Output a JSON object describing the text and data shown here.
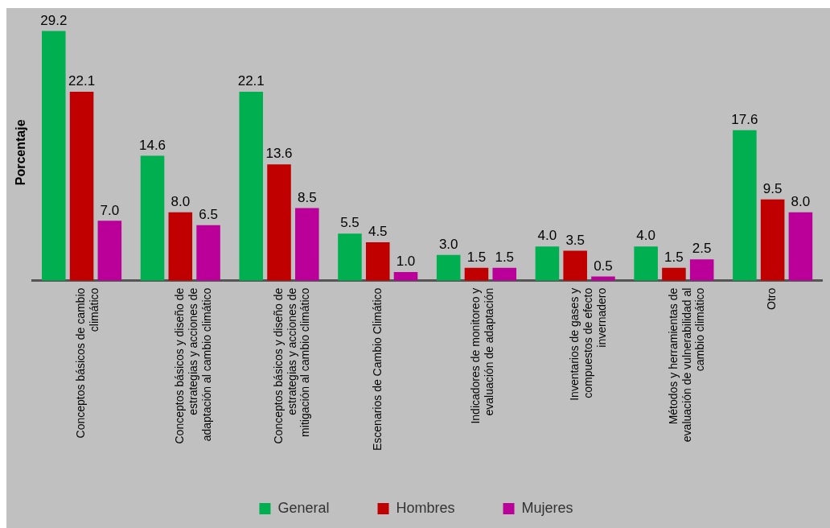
{
  "chart_data": {
    "type": "bar",
    "ylabel": "Porcentaje",
    "categories": [
      "Conceptos básicos de cambio climático",
      "Conceptos básicos y diseño de estrategias y acciones de adaptación al cambio climático",
      "Conceptos básicos y diseño de estrategias y acciones de mitigación al cambio climático",
      "Escenarios de Cambio Climático",
      "Indicadores de monitoreo y evaluación de adaptación",
      "Inventarios de gases y compuestos de efecto invernadero",
      "Métodos y herramientas de evaluación de vulnerabilidad al cambio climático",
      "Otro"
    ],
    "series": [
      {
        "name": "General",
        "color": "#00b050",
        "values": [
          29.2,
          14.6,
          22.1,
          5.5,
          3.0,
          4.0,
          4.0,
          17.6
        ],
        "value_labels": [
          "29.2",
          "14.6",
          "22.1",
          "5.5",
          "3.0",
          "4.0",
          "4.0",
          "17.6"
        ]
      },
      {
        "name": "Hombres",
        "color": "#c00000",
        "values": [
          22.1,
          8.0,
          13.6,
          4.5,
          1.5,
          3.5,
          1.5,
          9.5
        ],
        "value_labels": [
          "22.1",
          "8.0",
          "13.6",
          "4.5",
          "1.5",
          "3.5",
          "1.5",
          "9.5"
        ]
      },
      {
        "name": "Mujeres",
        "color": "#bb0099",
        "values": [
          7.0,
          6.5,
          8.5,
          1.0,
          1.5,
          0.5,
          2.5,
          8.0
        ],
        "value_labels": [
          "7.0",
          "6.5",
          "8.5",
          "1.0",
          "1.5",
          "0.5",
          "2.5",
          "8.0"
        ]
      }
    ],
    "tick_labels": "x",
    "legend": "bottom"
  }
}
